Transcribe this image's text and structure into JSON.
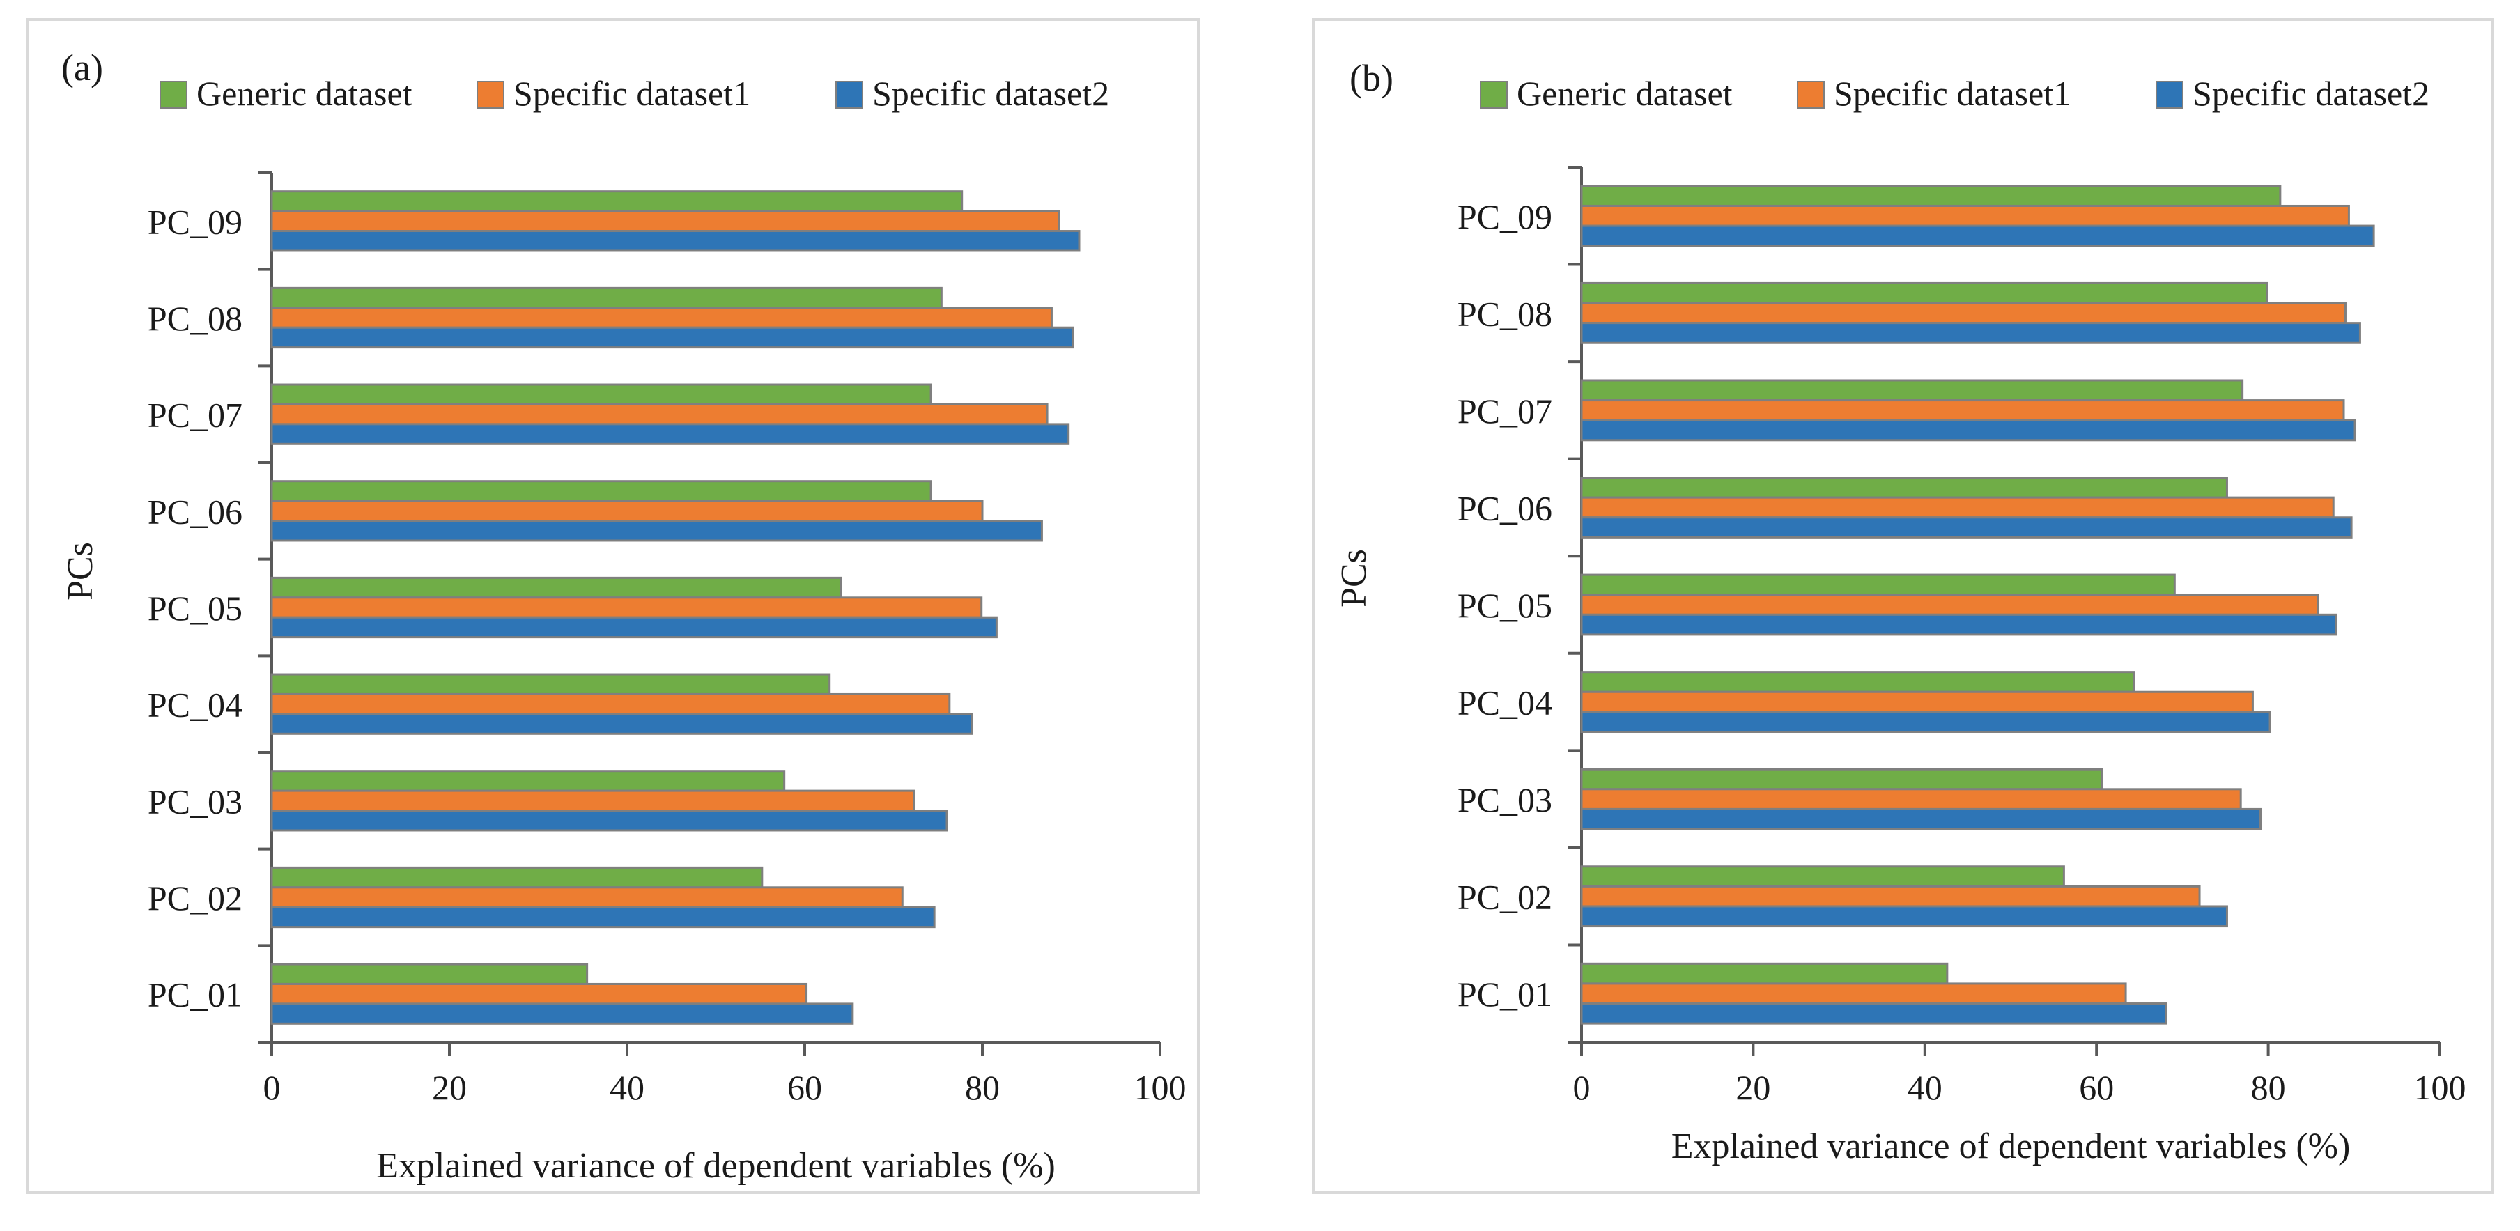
{
  "legend": [
    "Generic dataset",
    "Specific dataset1",
    "Specific dataset2"
  ],
  "colors": {
    "series": [
      "#70AD47",
      "#ED7D31",
      "#2E75B6"
    ],
    "bar_border": "#7F7F7F",
    "panel_border": "#D9D9D9",
    "axis": "#595959"
  },
  "chart_data": [
    {
      "type": "bar",
      "orientation": "horizontal",
      "panel_label": "(a)",
      "title": "",
      "xlabel": "Explained variance of dependent variables (%)",
      "ylabel": "PCs",
      "xlim": [
        0,
        100
      ],
      "xticks": [
        "0",
        "20",
        "40",
        "60",
        "80",
        "100"
      ],
      "categories": [
        "PC_01",
        "PC_02",
        "PC_03",
        "PC_04",
        "PC_05",
        "PC_06",
        "PC_07",
        "PC_08",
        "PC_09"
      ],
      "series": [
        {
          "name": "Generic dataset",
          "values": [
            35.5,
            55.2,
            57.7,
            62.8,
            64.1,
            74.2,
            74.2,
            75.4,
            77.7
          ]
        },
        {
          "name": "Specific dataset1",
          "values": [
            60.2,
            71.0,
            72.3,
            76.3,
            79.9,
            80.0,
            87.3,
            87.8,
            88.6
          ]
        },
        {
          "name": "Specific dataset2",
          "values": [
            65.4,
            74.6,
            76.0,
            78.8,
            81.6,
            86.7,
            89.7,
            90.2,
            90.9
          ]
        }
      ],
      "legend_position": "top"
    },
    {
      "type": "bar",
      "orientation": "horizontal",
      "panel_label": "(b)",
      "title": "",
      "xlabel": "Explained variance of dependent variables (%)",
      "ylabel": "PCs",
      "xlim": [
        0,
        100
      ],
      "xticks": [
        "0",
        "20",
        "40",
        "60",
        "80",
        "100"
      ],
      "categories": [
        "PC_01",
        "PC_02",
        "PC_03",
        "PC_04",
        "PC_05",
        "PC_06",
        "PC_07",
        "PC_08",
        "PC_09"
      ],
      "series": [
        {
          "name": "Generic dataset",
          "values": [
            42.6,
            56.2,
            60.6,
            64.4,
            69.1,
            75.2,
            77.0,
            79.9,
            81.4
          ]
        },
        {
          "name": "Specific dataset1",
          "values": [
            63.4,
            72.0,
            76.8,
            78.2,
            85.8,
            87.6,
            88.8,
            89.0,
            89.4
          ]
        },
        {
          "name": "Specific dataset2",
          "values": [
            68.1,
            75.2,
            79.1,
            80.2,
            87.9,
            89.7,
            90.1,
            90.7,
            92.3
          ]
        }
      ],
      "legend_position": "top"
    }
  ]
}
